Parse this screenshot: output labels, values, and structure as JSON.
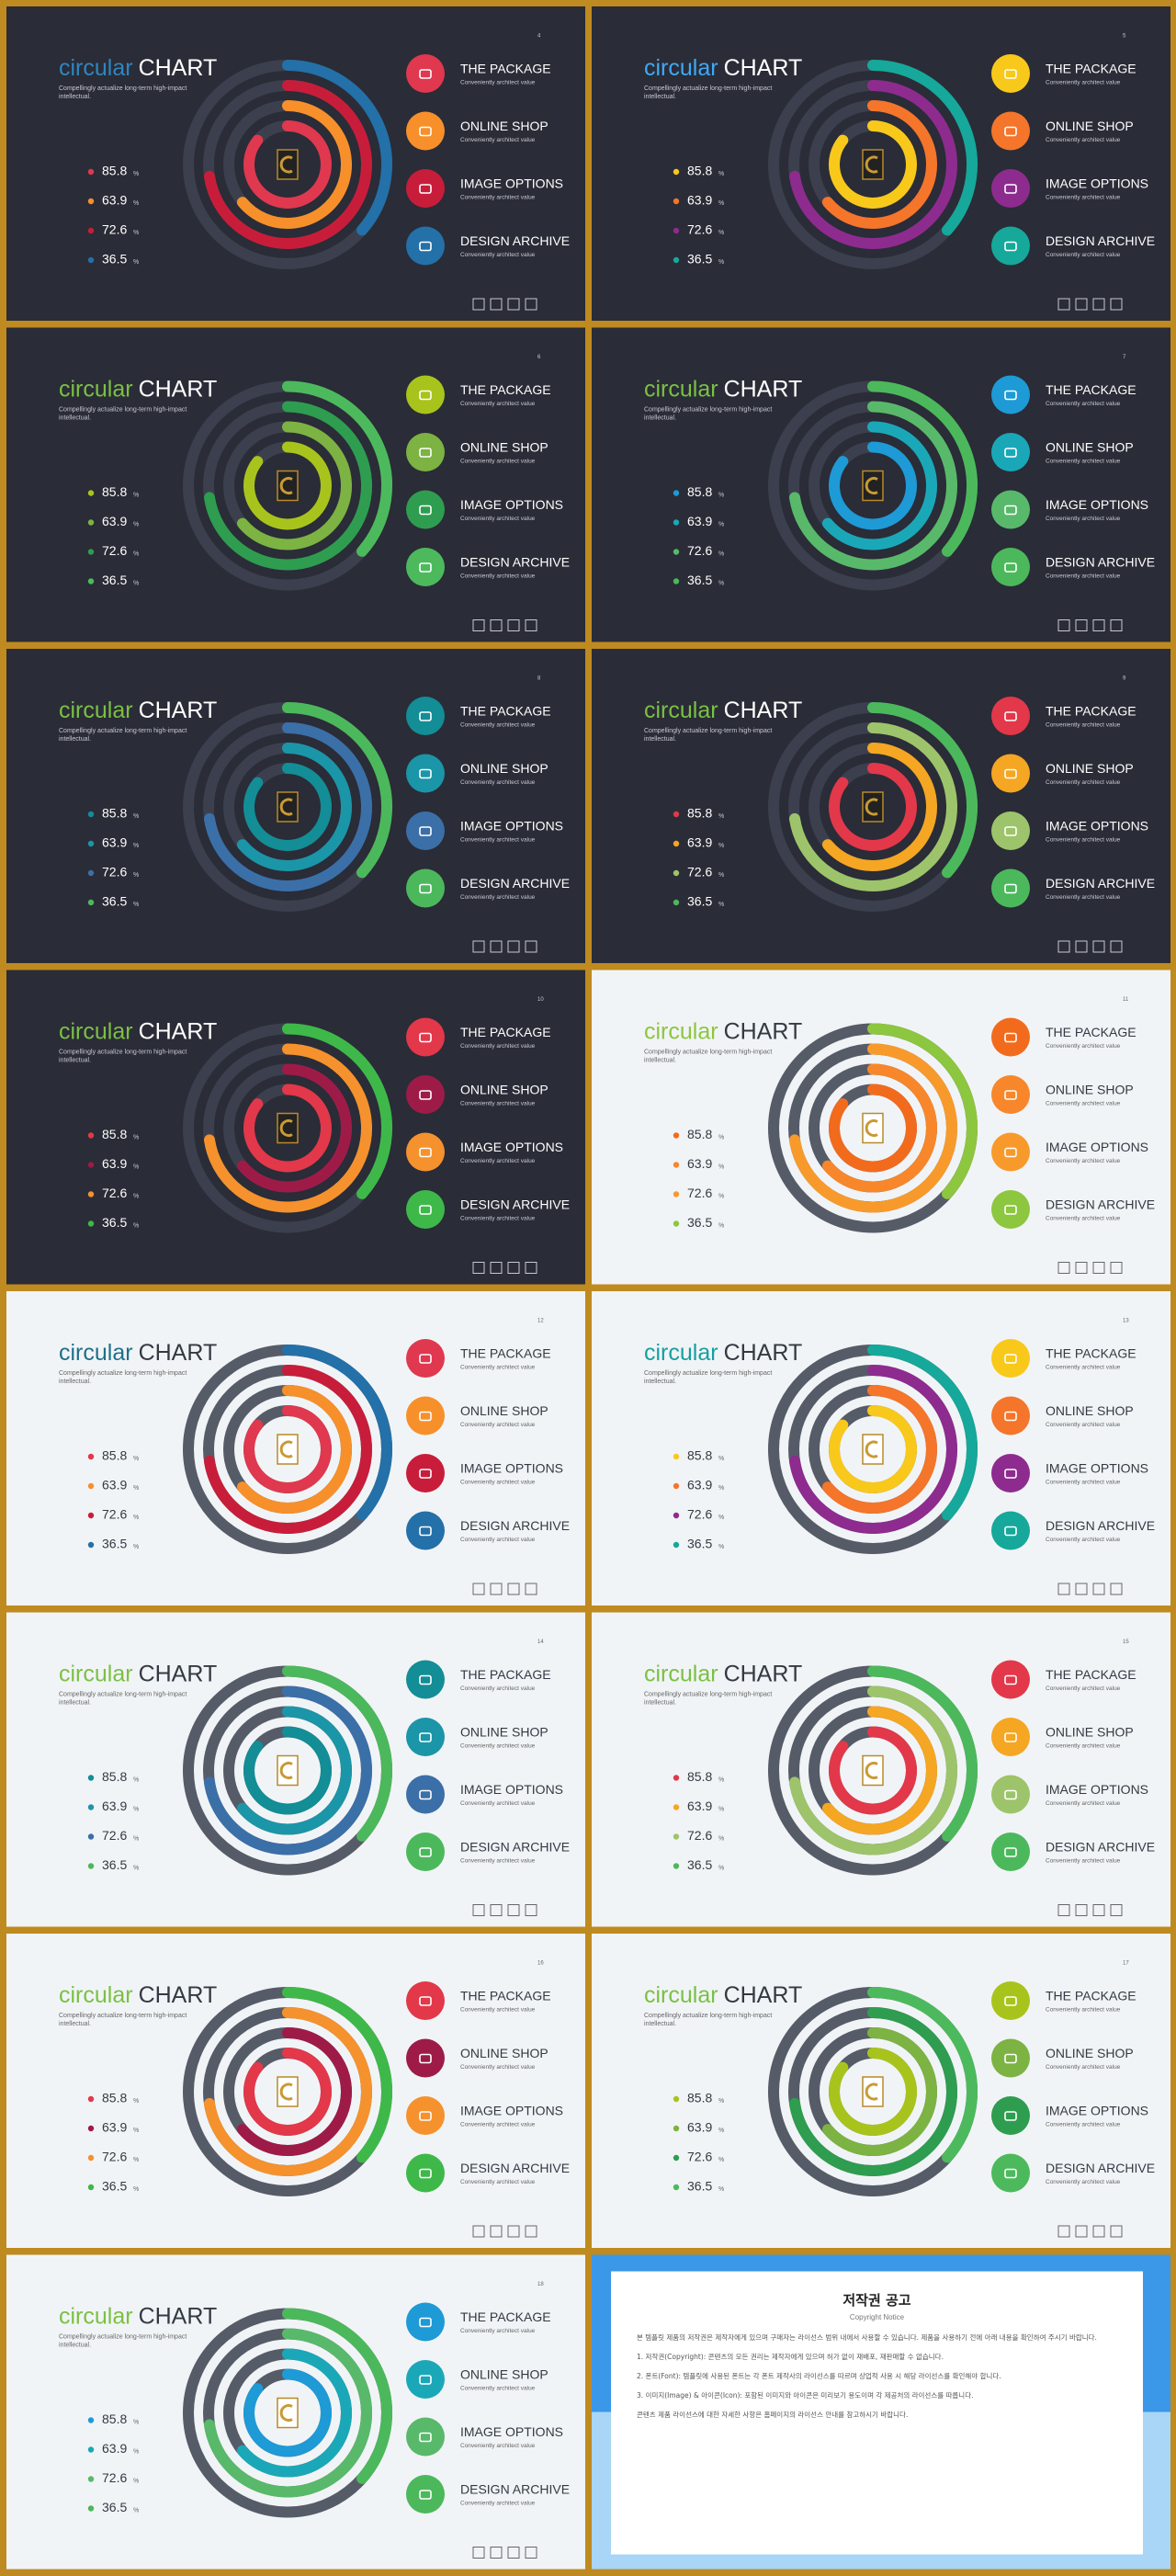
{
  "title_word1": "circular",
  "title_word2": "CHART",
  "subtitle": [
    "Compellingly actualize long-term high-impact",
    "intellectual."
  ],
  "values": [
    85.8,
    63.9,
    72.6,
    36.5
  ],
  "unit": "%",
  "item_titles": [
    "THE PACKAGE",
    "ONLINE SHOP",
    "IMAGE OPTIONS",
    "DESIGN ARCHIVE"
  ],
  "item_subtitle": "Conveniently architect value",
  "slides": [
    {
      "page": "4",
      "theme": "dark",
      "accent": "#2e86c1",
      "colors": [
        "#e0384f",
        "#f7902b",
        "#c81d3a",
        "#2470a8"
      ]
    },
    {
      "page": "5",
      "theme": "dark",
      "accent": "#3fa9f5",
      "colors": [
        "#f8c91b",
        "#f5752a",
        "#8e2b8f",
        "#16a89a"
      ]
    },
    {
      "page": "6",
      "theme": "dark",
      "accent": "#7ac143",
      "colors": [
        "#a8c41c",
        "#7cb342",
        "#2e9d4f",
        "#4cba5c"
      ]
    },
    {
      "page": "7",
      "theme": "dark",
      "accent": "#7ac143",
      "colors": [
        "#1e9ad6",
        "#1aa8b8",
        "#58b96a",
        "#4cb85c"
      ]
    },
    {
      "page": "8",
      "theme": "dark",
      "accent": "#7ac143",
      "colors": [
        "#138d96",
        "#1b95a8",
        "#3b6fa8",
        "#4cb85c"
      ]
    },
    {
      "page": "9",
      "theme": "dark",
      "accent": "#7ac143",
      "colors": [
        "#e2384a",
        "#f5a623",
        "#9dc46a",
        "#4cb85c"
      ]
    },
    {
      "page": "10",
      "theme": "dark",
      "accent": "#7ac143",
      "colors": [
        "#e2384a",
        "#9e1b48",
        "#f5922d",
        "#3fb84a"
      ]
    },
    {
      "page": "11",
      "theme": "light",
      "accent": "#8dc63f",
      "colors": [
        "#f26b1d",
        "#f7872a",
        "#f89a2b",
        "#8dc63f"
      ]
    },
    {
      "page": "12",
      "theme": "light",
      "accent": "#1f6f8b",
      "colors": [
        "#e0384f",
        "#f7902b",
        "#c81d3a",
        "#2470a8"
      ]
    },
    {
      "page": "13",
      "theme": "light",
      "accent": "#14a0a0",
      "colors": [
        "#f8c91b",
        "#f5752a",
        "#8e2b8f",
        "#16a89a"
      ]
    },
    {
      "page": "14",
      "theme": "light",
      "accent": "#7ac143",
      "colors": [
        "#138d96",
        "#1b95a8",
        "#3b6fa8",
        "#4cb85c"
      ]
    },
    {
      "page": "15",
      "theme": "light",
      "accent": "#7ac143",
      "colors": [
        "#e2384a",
        "#f5a623",
        "#9dc46a",
        "#4cb85c"
      ]
    },
    {
      "page": "16",
      "theme": "light",
      "accent": "#7ac143",
      "colors": [
        "#e2384a",
        "#9e1b48",
        "#f5922d",
        "#3fb84a"
      ]
    },
    {
      "page": "17",
      "theme": "light",
      "accent": "#7ac143",
      "colors": [
        "#a8c41c",
        "#7cb342",
        "#2e9d4f",
        "#4cba5c"
      ]
    },
    {
      "page": "18",
      "theme": "light",
      "accent": "#7ac143",
      "colors": [
        "#1e9ad6",
        "#1aa8b8",
        "#58b96a",
        "#4cb85c"
      ]
    }
  ],
  "notice": {
    "title": "저작권 공고",
    "subtitle": "Copyright Notice",
    "paragraphs": [
      "본 템플릿 제품의 저작권은 제작자에게 있으며 구매자는 라이선스 범위 내에서 사용할 수 있습니다. 제품을 사용하기 전에 아래 내용을 확인하여 주시기 바랍니다.",
      "1. 저작권(Copyright): 콘텐츠의 모든 권리는 제작자에게 있으며 허가 없이 재배포, 재판매할 수 없습니다.",
      "2. 폰트(Font): 템플릿에 사용된 폰트는 각 폰트 제작사의 라이선스를 따르며 상업적 사용 시 해당 라이선스를 확인해야 합니다.",
      "3. 이미지(Image) & 아이콘(Icon): 포함된 이미지와 아이콘은 미리보기 용도이며 각 제공처의 라이선스를 따릅니다.",
      "콘텐츠 제품 라이선스에 대한 자세한 사항은 홈페이지의 라이선스 안내를 참고하시기 바랍니다."
    ]
  }
}
